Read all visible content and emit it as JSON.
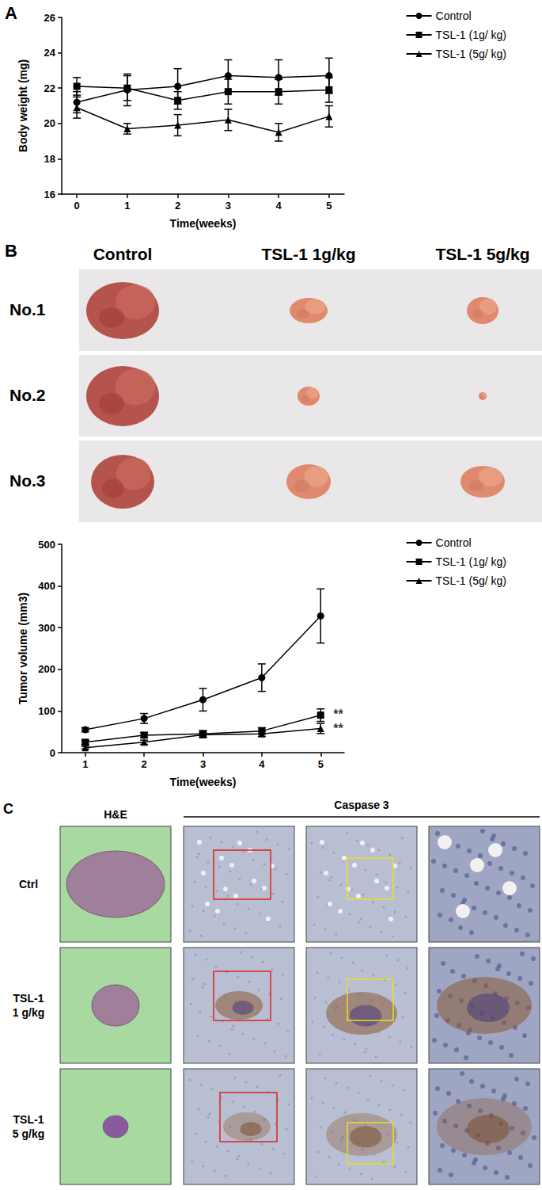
{
  "chart_data": [
    {
      "type": "line",
      "panel": "A",
      "x_label": "Time(weeks)",
      "y_label": "Body weight (mg)",
      "x": [
        0,
        1,
        2,
        3,
        4,
        5
      ],
      "xlim": [
        -0.3,
        5.3
      ],
      "xticks": [
        0,
        1,
        2,
        3,
        4,
        5
      ],
      "ylim": [
        16,
        26
      ],
      "yticks": [
        16,
        18,
        20,
        22,
        24,
        26
      ],
      "grid": false,
      "legend": "top-right",
      "series": [
        {
          "name": "Control",
          "color": "#000000",
          "marker": "circle",
          "values": [
            21.2,
            21.9,
            22.1,
            22.7,
            22.6,
            22.7
          ],
          "errors": [
            0.6,
            0.9,
            1.0,
            0.9,
            1.0,
            1.0
          ]
        },
        {
          "name": "TSL-1 (1g/ kg)",
          "color": "#000000",
          "marker": "square",
          "values": [
            22.1,
            22.0,
            21.3,
            21.8,
            21.8,
            21.9
          ],
          "errors": [
            0.5,
            0.7,
            0.5,
            0.7,
            0.7,
            0.7
          ]
        },
        {
          "name": "TSL-1 (5g/ kg)",
          "color": "#000000",
          "marker": "triangle",
          "values": [
            20.9,
            19.7,
            19.9,
            20.2,
            19.5,
            20.4
          ],
          "errors": [
            0.6,
            0.3,
            0.6,
            0.6,
            0.5,
            0.6
          ]
        }
      ]
    },
    {
      "type": "line",
      "x_label": "Time(weeks)",
      "y_label": "Tumor volume (mm3)",
      "x": [
        1,
        2,
        3,
        4,
        5
      ],
      "xlim": [
        0.6,
        5.4
      ],
      "xticks": [
        1,
        2,
        3,
        4,
        5
      ],
      "ylim": [
        0,
        500
      ],
      "yticks": [
        0,
        100,
        200,
        300,
        400,
        500
      ],
      "grid": false,
      "legend": "top-right",
      "series": [
        {
          "name": "Control",
          "color": "#000000",
          "marker": "circle",
          "values": [
            55,
            82,
            127,
            180,
            328
          ],
          "errors": [
            5,
            12,
            27,
            33,
            65
          ]
        },
        {
          "name": "TSL-1 (1g/ kg)",
          "color": "#000000",
          "marker": "square",
          "values": [
            25,
            42,
            45,
            52,
            90
          ],
          "errors": [
            5,
            6,
            8,
            8,
            15
          ]
        },
        {
          "name": "TSL-1 (5g/ kg)",
          "color": "#000000",
          "marker": "triangle",
          "values": [
            12,
            25,
            43,
            45,
            58
          ],
          "errors": [
            3,
            5,
            6,
            6,
            12
          ]
        }
      ],
      "annotations": [
        {
          "text": "**",
          "x": 5,
          "y": 92
        },
        {
          "text": "**",
          "x": 5,
          "y": 58
        }
      ]
    }
  ],
  "photo_panel": {
    "panel": "B",
    "columns": [
      "Control",
      "TSL-1 1g/kg",
      "TSL-1 5g/kg"
    ],
    "rows": [
      "No.1",
      "No.2",
      "No.3"
    ]
  },
  "histology_panel": {
    "panel": "C",
    "first_column": "H&E",
    "group_header": "Caspase 3",
    "rows": [
      [
        "Ctrl"
      ],
      [
        "TSL-1",
        "1 g/kg"
      ],
      [
        "TSL-1",
        "5 g/kg"
      ]
    ]
  }
}
